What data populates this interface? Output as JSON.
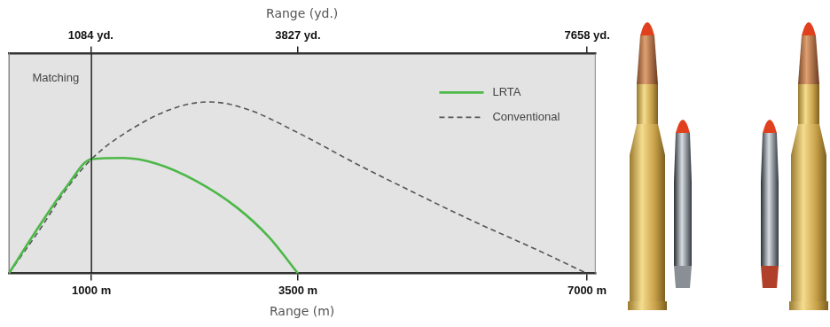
{
  "chart_data": {
    "type": "line",
    "xlabel": "Range (m)",
    "x2label": "Range (yd.)",
    "xlim": [
      0,
      7100
    ],
    "xticks": [
      {
        "value": 1000,
        "label": "1000 m"
      },
      {
        "value": 3500,
        "label": "3500 m"
      },
      {
        "value": 7000,
        "label": "7000 m"
      }
    ],
    "x2lim": [
      0,
      7765
    ],
    "x2ticks": [
      {
        "value": 1084,
        "label": "1084 yd."
      },
      {
        "value": 3827,
        "label": "3827 yd."
      },
      {
        "value": 7658,
        "label": "7658 yd."
      }
    ],
    "ylim": [
      0,
      100
    ],
    "tick_labels": "x",
    "grid": false,
    "legend": "upper right",
    "series": [
      {
        "name": "LRTA",
        "color": "#4cb848",
        "line_style": "solid",
        "x": [
          0,
          375,
          690,
          1000,
          1390,
          1780,
          2270,
          2760,
          3150,
          3500
        ],
        "values": [
          0,
          22,
          39,
          52,
          52.5,
          50,
          42,
          30,
          16.5,
          0
        ]
      },
      {
        "name": "Conventional",
        "color": "#555555",
        "line_style": "dashed",
        "x": [
          0,
          375,
          690,
          1000,
          1590,
          2070,
          2420,
          2860,
          3500,
          4200,
          4840,
          5610,
          6380,
          7000
        ],
        "values": [
          0,
          20,
          38,
          52,
          68,
          76,
          78,
          75,
          64,
          50,
          38,
          24,
          11,
          0
        ]
      }
    ],
    "annotations": [
      {
        "x": 1000,
        "text": "Matching"
      }
    ]
  }
}
